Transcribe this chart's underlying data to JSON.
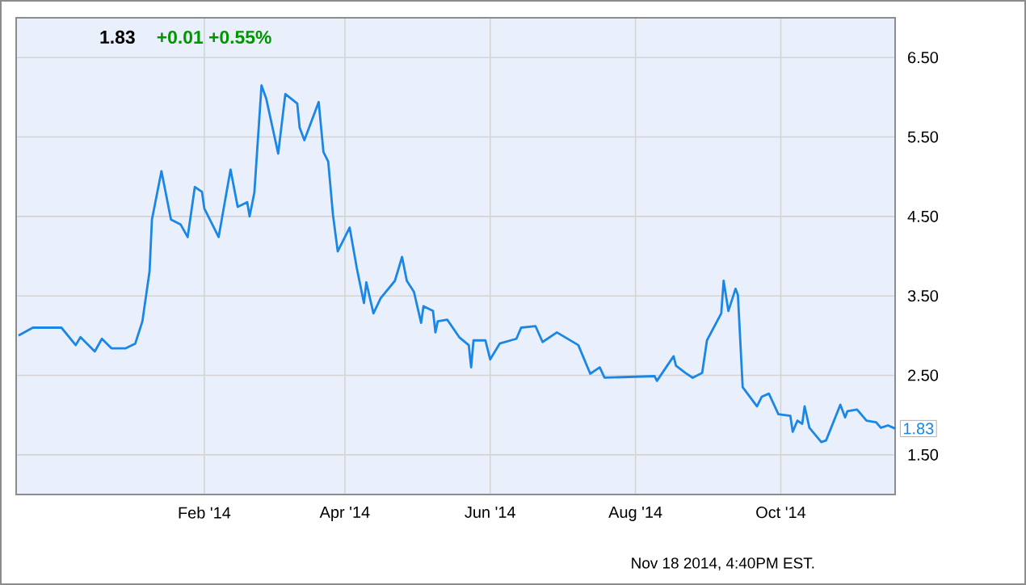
{
  "chart_data": {
    "type": "line",
    "title": "1.83",
    "subtitle": "+0.01  +0.55%",
    "color": "#1a87e6",
    "x": [
      "2013-11-15",
      "2013-11-21",
      "2013-12-03",
      "2013-12-09",
      "2013-12-11",
      "2013-12-17",
      "2013-12-20",
      "2013-12-24",
      "2013-12-30",
      "2014-01-03",
      "2014-01-06",
      "2014-01-09",
      "2014-01-10",
      "2014-01-14",
      "2014-01-18",
      "2014-01-22",
      "2014-01-25",
      "2014-01-28",
      "2014-01-31",
      "2014-02-01",
      "2014-02-07",
      "2014-02-12",
      "2014-02-15",
      "2014-02-19",
      "2014-02-20",
      "2014-02-22",
      "2014-02-25",
      "2014-02-27",
      "2014-03-04",
      "2014-03-07",
      "2014-03-12",
      "2014-03-13",
      "2014-03-15",
      "2014-03-21",
      "2014-03-23",
      "2014-03-25",
      "2014-03-27",
      "2014-03-29",
      "2014-04-03",
      "2014-04-06",
      "2014-04-09",
      "2014-04-10",
      "2014-04-13",
      "2014-04-16",
      "2014-04-22",
      "2014-04-25",
      "2014-04-27",
      "2014-04-30",
      "2014-05-03",
      "2014-05-04",
      "2014-05-08",
      "2014-05-09",
      "2014-05-10",
      "2014-05-14",
      "2014-05-19",
      "2014-05-23",
      "2014-05-24",
      "2014-05-25",
      "2014-05-30",
      "2014-06-01",
      "2014-06-05",
      "2014-06-12",
      "2014-06-14",
      "2014-06-20",
      "2014-06-23",
      "2014-06-29",
      "2014-07-08",
      "2014-07-13",
      "2014-07-17",
      "2014-07-19",
      "2014-08-09",
      "2014-08-10",
      "2014-08-17",
      "2014-08-18",
      "2014-08-22",
      "2014-08-25",
      "2014-08-29",
      "2014-08-31",
      "2014-09-06",
      "2014-09-07",
      "2014-09-09",
      "2014-09-12",
      "2014-09-13",
      "2014-09-15",
      "2014-09-16",
      "2014-09-21",
      "2014-09-23",
      "2014-09-26",
      "2014-09-30",
      "2014-10-05",
      "2014-10-06",
      "2014-10-08",
      "2014-10-10",
      "2014-10-11",
      "2014-10-13",
      "2014-10-18",
      "2014-10-20",
      "2014-10-26",
      "2014-10-28",
      "2014-10-29",
      "2014-11-02",
      "2014-11-06",
      "2014-11-10",
      "2014-11-12",
      "2014-11-15",
      "2014-11-18"
    ],
    "values": [
      3.0,
      3.1,
      3.1,
      2.88,
      2.98,
      2.8,
      2.96,
      2.84,
      2.84,
      2.9,
      3.18,
      3.81,
      4.46,
      5.07,
      4.46,
      4.4,
      4.24,
      4.87,
      4.81,
      4.6,
      4.24,
      5.09,
      4.62,
      4.68,
      4.5,
      4.8,
      6.15,
      5.98,
      5.29,
      6.04,
      5.92,
      5.62,
      5.46,
      5.94,
      5.31,
      5.19,
      4.52,
      4.06,
      4.36,
      3.85,
      3.41,
      3.67,
      3.28,
      3.47,
      3.69,
      3.99,
      3.69,
      3.55,
      3.16,
      3.37,
      3.31,
      3.04,
      3.18,
      3.2,
      2.98,
      2.88,
      2.6,
      2.94,
      2.94,
      2.7,
      2.9,
      2.96,
      3.1,
      3.12,
      2.92,
      3.04,
      2.88,
      2.52,
      2.6,
      2.47,
      2.49,
      2.43,
      2.74,
      2.62,
      2.53,
      2.47,
      2.53,
      2.94,
      3.28,
      3.69,
      3.31,
      3.59,
      3.51,
      2.35,
      2.31,
      2.11,
      2.23,
      2.27,
      2.01,
      1.99,
      1.79,
      1.93,
      1.89,
      2.11,
      1.84,
      1.66,
      1.68,
      2.13,
      1.97,
      2.05,
      2.07,
      1.93,
      1.91,
      1.84,
      1.87,
      1.83
    ],
    "xlim": [
      "2013-11-14",
      "2014-11-18"
    ],
    "ylim": [
      1.0,
      7.0
    ],
    "xticks": [
      {
        "value": "2014-02-01",
        "label": "Feb '14"
      },
      {
        "value": "2014-04-01",
        "label": "Apr '14"
      },
      {
        "value": "2014-06-01",
        "label": "Jun '14"
      },
      {
        "value": "2014-08-01",
        "label": "Aug '14"
      },
      {
        "value": "2014-10-01",
        "label": "Oct '14"
      }
    ],
    "yticks": [
      {
        "value": 1.5,
        "label": "1.50"
      },
      {
        "value": 2.5,
        "label": "2.50"
      },
      {
        "value": 3.5,
        "label": "3.50"
      },
      {
        "value": 4.5,
        "label": "4.50"
      },
      {
        "value": 5.5,
        "label": "5.50"
      },
      {
        "value": 6.5,
        "label": "6.50"
      }
    ],
    "grid": true,
    "annotations": [
      {
        "text": "1.83",
        "x": "2014-11-18",
        "y": 1.83
      },
      "Nov 18 2014, 4:40PM EST."
    ]
  }
}
